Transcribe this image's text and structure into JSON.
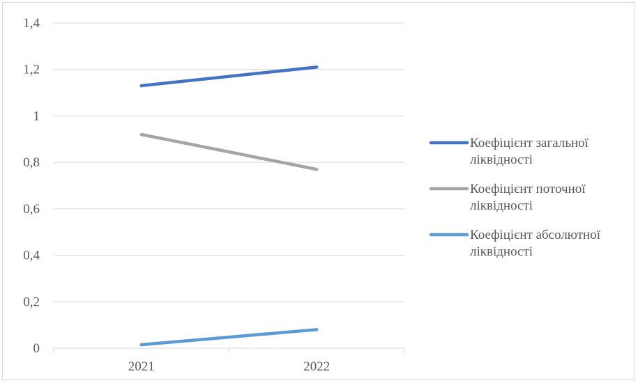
{
  "chart_data": {
    "type": "line",
    "categories": [
      "2021",
      "2022"
    ],
    "y_tick_labels": [
      "0",
      "0,2",
      "0,4",
      "0,6",
      "0,8",
      "1",
      "1,2",
      "1,4"
    ],
    "ylim": [
      0,
      1.4
    ],
    "grid": true,
    "legend_position": "right",
    "series": [
      {
        "name": "Коефіцієнт загальної ліквідності",
        "values": [
          1.13,
          1.21
        ],
        "color": "#4472c4",
        "legend_lines": [
          "Коефіцієнт загальної",
          "ліквідності"
        ]
      },
      {
        "name": "Коефіцієнт поточної ліквідності",
        "values": [
          0.92,
          0.77
        ],
        "color": "#a5a5a5",
        "legend_lines": [
          "Коефіцієнт поточної",
          "ліквідності"
        ]
      },
      {
        "name": "Коефіцієнт абсолютної ліквідності",
        "values": [
          0.015,
          0.08
        ],
        "color": "#5b9bd5",
        "legend_lines": [
          "Коефіцієнт абсолютної",
          "ліквідності"
        ]
      }
    ]
  }
}
